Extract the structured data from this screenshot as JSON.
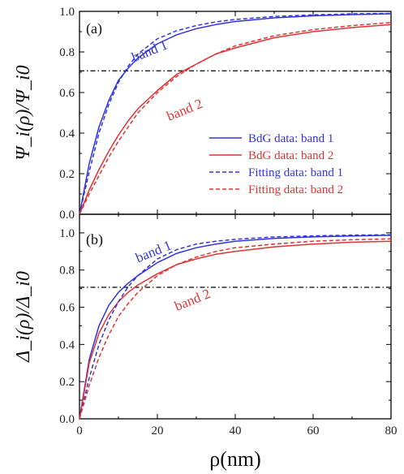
{
  "chart_data": [
    {
      "type": "line",
      "panel_label": "(a)",
      "ylabel": "Ψ_i(ρ)/Ψ_i0",
      "xlim": [
        0,
        80
      ],
      "ylim": [
        0,
        1.0
      ],
      "x_ticks": [
        0,
        20,
        40,
        60,
        80
      ],
      "y_ticks": [
        0.0,
        0.2,
        0.4,
        0.6,
        0.8,
        1.0
      ],
      "y_tick_labels": [
        "0.0",
        "0.2",
        "0.4",
        "0.6",
        "0.8",
        "1.0"
      ],
      "reference_line": {
        "y": 0.707,
        "style": "dash-dot",
        "color": "#000000"
      },
      "x": [
        0,
        2.5,
        5,
        7.5,
        10,
        12.5,
        15,
        20,
        25,
        30,
        35,
        40,
        50,
        60,
        70,
        80
      ],
      "series": [
        {
          "name": "BdG data: band 1",
          "color": "#3333dd",
          "style": "solid",
          "values": [
            0.0,
            0.25,
            0.43,
            0.56,
            0.66,
            0.72,
            0.77,
            0.84,
            0.885,
            0.915,
            0.935,
            0.95,
            0.968,
            0.978,
            0.984,
            0.988
          ]
        },
        {
          "name": "BdG data: band 2",
          "color": "#dd3333",
          "style": "solid",
          "values": [
            0.0,
            0.12,
            0.22,
            0.31,
            0.39,
            0.46,
            0.52,
            0.61,
            0.69,
            0.74,
            0.79,
            0.82,
            0.87,
            0.9,
            0.92,
            0.935
          ]
        },
        {
          "name": "Fitting data: band 1",
          "color": "#3333dd",
          "style": "dashed",
          "values": [
            0.0,
            0.21,
            0.4,
            0.54,
            0.65,
            0.73,
            0.79,
            0.865,
            0.905,
            0.93,
            0.948,
            0.96,
            0.975,
            0.983,
            0.988,
            0.99
          ]
        },
        {
          "name": "Fitting data: band 2",
          "color": "#dd3333",
          "style": "dashed",
          "values": [
            0.0,
            0.1,
            0.19,
            0.28,
            0.36,
            0.43,
            0.5,
            0.6,
            0.68,
            0.74,
            0.79,
            0.83,
            0.88,
            0.91,
            0.93,
            0.945
          ]
        }
      ],
      "annotations": [
        {
          "text": "band 1",
          "color": "#3333dd",
          "x": 14,
          "y": 0.75
        },
        {
          "text": "band 2",
          "color": "#dd3333",
          "x": 23,
          "y": 0.46
        }
      ],
      "legend": {
        "placement": "center-right",
        "entries": [
          {
            "label": "BdG data: band 1",
            "color": "#3333dd",
            "style": "solid"
          },
          {
            "label": "BdG data: band 2",
            "color": "#dd3333",
            "style": "solid"
          },
          {
            "label": "Fitting data: band 1",
            "color": "#3333dd",
            "style": "dashed"
          },
          {
            "label": "Fitting data: band 2",
            "color": "#dd3333",
            "style": "dashed"
          }
        ]
      }
    },
    {
      "type": "line",
      "panel_label": "(b)",
      "ylabel": "Δ_i(ρ)/Δ_i0",
      "xlabel": "ρ(nm)",
      "xlim": [
        0,
        80
      ],
      "ylim": [
        0,
        1.1
      ],
      "x_ticks": [
        0,
        20,
        40,
        60,
        80
      ],
      "x_tick_labels": [
        "0",
        "20",
        "40",
        "60",
        "80"
      ],
      "y_ticks": [
        0.0,
        0.2,
        0.4,
        0.6,
        0.8,
        1.0
      ],
      "y_tick_labels": [
        "0.0",
        "0.2",
        "0.4",
        "0.6",
        "0.8",
        "1.0"
      ],
      "reference_line": {
        "y": 0.707,
        "style": "dash-dot",
        "color": "#000000"
      },
      "x": [
        0,
        2.5,
        5,
        7.5,
        10,
        12.5,
        15,
        20,
        25,
        30,
        35,
        40,
        50,
        60,
        70,
        80
      ],
      "series": [
        {
          "name": "BdG data: band 1",
          "color": "#3333dd",
          "style": "solid",
          "values": [
            0.0,
            0.32,
            0.5,
            0.61,
            0.68,
            0.73,
            0.77,
            0.84,
            0.89,
            0.92,
            0.94,
            0.955,
            0.97,
            0.978,
            0.983,
            0.987
          ]
        },
        {
          "name": "BdG data: band 2",
          "color": "#dd3333",
          "style": "solid",
          "values": [
            0.0,
            0.3,
            0.46,
            0.56,
            0.63,
            0.68,
            0.72,
            0.78,
            0.83,
            0.86,
            0.885,
            0.9,
            0.925,
            0.94,
            0.95,
            0.955
          ]
        },
        {
          "name": "Fitting data: band 1",
          "color": "#3333dd",
          "style": "dashed",
          "values": [
            0.0,
            0.22,
            0.4,
            0.53,
            0.63,
            0.71,
            0.77,
            0.86,
            0.91,
            0.94,
            0.955,
            0.965,
            0.978,
            0.984,
            0.988,
            0.99
          ]
        },
        {
          "name": "Fitting data: band 2",
          "color": "#dd3333",
          "style": "dashed",
          "values": [
            0.0,
            0.18,
            0.33,
            0.45,
            0.55,
            0.62,
            0.68,
            0.77,
            0.83,
            0.87,
            0.9,
            0.92,
            0.94,
            0.955,
            0.963,
            0.968
          ]
        }
      ],
      "annotations": [
        {
          "text": "band 1",
          "color": "#3333dd",
          "x": 15,
          "y": 0.84
        },
        {
          "text": "band 2",
          "color": "#dd3333",
          "x": 25,
          "y": 0.58
        }
      ]
    }
  ]
}
